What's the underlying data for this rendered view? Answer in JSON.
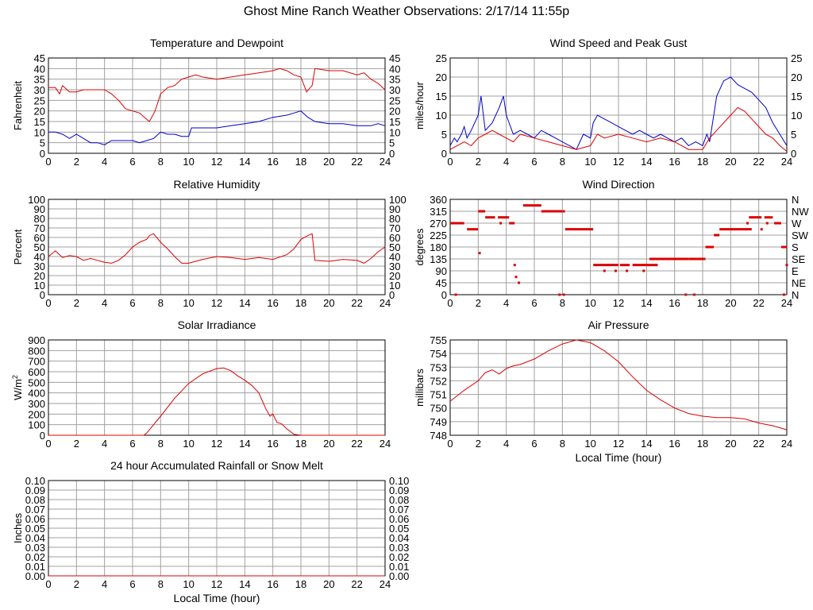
{
  "page": {
    "title": "Ghost Mine Ranch Weather Observations: 2/17/14 11:55p"
  },
  "colors": {
    "red": "#dd0000",
    "blue": "#0000cc",
    "grid": "#a0a0a0"
  },
  "chart_data": [
    {
      "id": "temp",
      "type": "line",
      "title": "Temperature and Dewpoint",
      "xlabel": "",
      "ylabel": "Fahrenheit",
      "xlim": [
        0,
        24
      ],
      "xticks": [
        0,
        2,
        4,
        6,
        8,
        10,
        12,
        14,
        16,
        18,
        20,
        22,
        24
      ],
      "ylim": [
        0,
        45
      ],
      "yticks": [
        0,
        5,
        10,
        15,
        20,
        25,
        30,
        35,
        40,
        45
      ],
      "right_axis": true,
      "series": [
        {
          "color": "#dd0000",
          "x": [
            0,
            0.5,
            0.8,
            1,
            1.5,
            2,
            2.5,
            3,
            4,
            4.5,
            5,
            5.5,
            6,
            6.5,
            7,
            7.2,
            7.6,
            8,
            8.5,
            9,
            9.5,
            10,
            10.5,
            11,
            12,
            13,
            14,
            15,
            16,
            16.5,
            17,
            17.5,
            18,
            18.4,
            18.8,
            19,
            20,
            21,
            22,
            22.5,
            23,
            23.5,
            24
          ],
          "y": [
            31,
            31,
            28,
            32,
            29,
            29,
            30,
            30,
            30,
            28,
            25,
            21,
            20,
            19,
            16,
            15,
            20,
            28,
            31,
            32,
            35,
            36,
            37,
            36,
            35,
            36,
            37,
            38,
            39,
            40,
            39,
            37,
            36,
            29,
            32,
            40,
            39,
            39,
            37,
            38,
            35,
            33,
            30
          ]
        },
        {
          "color": "#0000cc",
          "x": [
            0,
            0.5,
            1,
            1.5,
            2,
            2.5,
            3,
            3.5,
            4,
            4.5,
            5,
            5.5,
            6,
            6.5,
            7,
            7.5,
            8,
            8.5,
            9,
            9.5,
            10,
            10.2,
            11,
            12,
            13,
            14,
            15,
            16,
            17,
            17.5,
            18,
            18.5,
            19,
            20,
            21,
            22,
            23,
            23.5,
            24
          ],
          "y": [
            10,
            10,
            9,
            7,
            9,
            7,
            5,
            5,
            4,
            6,
            6,
            6,
            6,
            5,
            6,
            7,
            10,
            9,
            9,
            8,
            8,
            12,
            12,
            12,
            13,
            14,
            15,
            17,
            18,
            19,
            20,
            17,
            15,
            14,
            14,
            13,
            13,
            14,
            13
          ]
        }
      ]
    },
    {
      "id": "wind",
      "type": "line",
      "title": "Wind Speed and Peak Gust",
      "xlabel": "",
      "ylabel": "miles/hour",
      "xlim": [
        0,
        24
      ],
      "xticks": [
        0,
        2,
        4,
        6,
        8,
        10,
        12,
        14,
        16,
        18,
        20,
        22,
        24
      ],
      "ylim": [
        0,
        25
      ],
      "yticks": [
        0,
        5,
        10,
        15,
        20,
        25
      ],
      "right_axis": true,
      "series": [
        {
          "color": "#0000cc",
          "x": [
            0,
            0.3,
            0.5,
            0.8,
            1,
            1.2,
            1.5,
            2,
            2.2,
            2.5,
            3,
            3.5,
            3.8,
            4,
            4.5,
            5,
            5.5,
            6,
            6.5,
            7,
            7.5,
            8,
            8.5,
            9,
            9.5,
            10,
            10.2,
            10.5,
            11,
            11.5,
            12,
            12.5,
            13,
            13.5,
            14,
            14.5,
            15,
            15.5,
            16,
            16.5,
            17,
            17.5,
            18,
            18.3,
            18.5,
            19,
            19.5,
            20,
            20.5,
            21,
            21.5,
            22,
            22.5,
            23,
            23.5,
            24
          ],
          "y": [
            2,
            4,
            3,
            5,
            7,
            4,
            6,
            10,
            15,
            6,
            8,
            12,
            15,
            10,
            5,
            6,
            5,
            4,
            6,
            5,
            4,
            3,
            2,
            1,
            5,
            4,
            8,
            10,
            9,
            8,
            7,
            6,
            5,
            6,
            5,
            4,
            5,
            4,
            3,
            4,
            2,
            3,
            2,
            5,
            3,
            15,
            19,
            20,
            18,
            17,
            16,
            14,
            12,
            8,
            5,
            2
          ]
        },
        {
          "color": "#dd0000",
          "x": [
            0,
            0.5,
            1,
            1.5,
            2,
            2.5,
            3,
            3.5,
            4,
            4.5,
            5,
            6,
            7,
            8,
            9,
            10,
            10.5,
            11,
            12,
            13,
            14,
            15,
            16,
            17,
            18,
            18.5,
            19,
            19.5,
            20,
            20.5,
            21,
            21.5,
            22,
            22.5,
            23,
            23.5,
            24
          ],
          "y": [
            1,
            2,
            3,
            2,
            4,
            5,
            6,
            5,
            4,
            3,
            5,
            4,
            3,
            2,
            1,
            2,
            5,
            4,
            5,
            4,
            3,
            4,
            3,
            1,
            1,
            4,
            6,
            8,
            10,
            12,
            11,
            9,
            7,
            5,
            4,
            2,
            0.5
          ]
        }
      ]
    },
    {
      "id": "rh",
      "type": "line",
      "title": "Relative Humidity",
      "xlabel": "",
      "ylabel": "Percent",
      "xlim": [
        0,
        24
      ],
      "xticks": [
        0,
        2,
        4,
        6,
        8,
        10,
        12,
        14,
        16,
        18,
        20,
        22,
        24
      ],
      "ylim": [
        0,
        100
      ],
      "yticks": [
        0,
        10,
        20,
        30,
        40,
        50,
        60,
        70,
        80,
        90,
        100
      ],
      "right_axis": true,
      "series": [
        {
          "color": "#dd0000",
          "x": [
            0,
            0.5,
            1,
            1.5,
            2,
            2.5,
            3,
            3.5,
            4,
            4.5,
            5,
            5.5,
            6,
            6.5,
            7,
            7.2,
            7.5,
            8,
            8.5,
            9,
            9.5,
            10,
            11,
            12,
            13,
            14,
            15,
            16,
            17,
            17.5,
            18,
            18.5,
            18.8,
            19,
            20,
            21,
            22,
            22.5,
            23,
            23.5,
            24
          ],
          "y": [
            40,
            46,
            39,
            41,
            40,
            36,
            38,
            36,
            34,
            33,
            36,
            42,
            50,
            55,
            58,
            62,
            64,
            55,
            48,
            40,
            33,
            33,
            37,
            40,
            39,
            37,
            39,
            37,
            42,
            48,
            58,
            62,
            64,
            36,
            35,
            37,
            36,
            33,
            38,
            45,
            50
          ]
        }
      ]
    },
    {
      "id": "wdir",
      "type": "scatter",
      "title": "Wind Direction",
      "xlabel": "",
      "ylabel": "degrees",
      "xlim": [
        0,
        24
      ],
      "xticks": [
        0,
        2,
        4,
        6,
        8,
        10,
        12,
        14,
        16,
        18,
        20,
        22,
        24
      ],
      "ylim": [
        0,
        360
      ],
      "yticks": [
        0,
        45,
        90,
        135,
        180,
        225,
        270,
        315,
        360
      ],
      "right_labels": [
        "N",
        "NE",
        "E",
        "SE",
        "S",
        "SW",
        "W",
        "NW",
        "N"
      ],
      "segments": [
        {
          "x0": 0,
          "x1": 1,
          "y": 270
        },
        {
          "x0": 1.2,
          "x1": 2,
          "y": 247
        },
        {
          "x0": 2,
          "x1": 2.5,
          "y": 315
        },
        {
          "x0": 2.5,
          "x1": 3.2,
          "y": 292
        },
        {
          "x0": 3.4,
          "x1": 4.2,
          "y": 292
        },
        {
          "x0": 4.2,
          "x1": 4.6,
          "y": 270
        },
        {
          "x0": 5.2,
          "x1": 6.5,
          "y": 337
        },
        {
          "x0": 6.5,
          "x1": 8,
          "y": 315
        },
        {
          "x0": 8.2,
          "x1": 10.2,
          "y": 247
        },
        {
          "x0": 10.2,
          "x1": 12,
          "y": 112
        },
        {
          "x0": 12.1,
          "x1": 12.8,
          "y": 112
        },
        {
          "x0": 13,
          "x1": 14,
          "y": 112
        },
        {
          "x0": 14,
          "x1": 14.8,
          "y": 112
        },
        {
          "x0": 14.2,
          "x1": 15,
          "y": 135
        },
        {
          "x0": 15,
          "x1": 17,
          "y": 135
        },
        {
          "x0": 17,
          "x1": 18.2,
          "y": 135
        },
        {
          "x0": 18.2,
          "x1": 18.8,
          "y": 180
        },
        {
          "x0": 18.8,
          "x1": 19.2,
          "y": 225
        },
        {
          "x0": 19.2,
          "x1": 21.5,
          "y": 247
        },
        {
          "x0": 21.3,
          "x1": 22.2,
          "y": 292
        },
        {
          "x0": 22.4,
          "x1": 23,
          "y": 292
        },
        {
          "x0": 23.1,
          "x1": 23.6,
          "y": 270
        },
        {
          "x0": 23.6,
          "x1": 24,
          "y": 180
        }
      ],
      "points": [
        {
          "x": 0.4,
          "y": 0
        },
        {
          "x": 2.1,
          "y": 157
        },
        {
          "x": 3.6,
          "y": 270
        },
        {
          "x": 4.6,
          "y": 112
        },
        {
          "x": 4.7,
          "y": 67
        },
        {
          "x": 4.9,
          "y": 45
        },
        {
          "x": 7.8,
          "y": 0
        },
        {
          "x": 8.1,
          "y": 0
        },
        {
          "x": 8.1,
          "y": 315
        },
        {
          "x": 11,
          "y": 90
        },
        {
          "x": 11.8,
          "y": 90
        },
        {
          "x": 12.6,
          "y": 90
        },
        {
          "x": 13.8,
          "y": 90
        },
        {
          "x": 16.8,
          "y": 0
        },
        {
          "x": 17.4,
          "y": 0
        },
        {
          "x": 21.2,
          "y": 270
        },
        {
          "x": 22.2,
          "y": 247
        },
        {
          "x": 22.6,
          "y": 270
        },
        {
          "x": 23.8,
          "y": 0
        },
        {
          "x": 24,
          "y": 112
        }
      ]
    },
    {
      "id": "solar",
      "type": "line",
      "title": "Solar Irradiance",
      "xlabel": "",
      "ylabel": "W/m2",
      "xlim": [
        0,
        24
      ],
      "xticks": [
        0,
        2,
        4,
        6,
        8,
        10,
        12,
        14,
        16,
        18,
        20,
        22,
        24
      ],
      "ylim": [
        0,
        900
      ],
      "yticks": [
        0,
        100,
        200,
        300,
        400,
        500,
        600,
        700,
        800,
        900
      ],
      "right_axis": false,
      "series": [
        {
          "color": "#dd0000",
          "x": [
            0,
            6.8,
            7,
            8,
            9,
            10,
            11,
            12,
            12.5,
            13,
            13.5,
            14,
            14.5,
            15,
            15.5,
            15.8,
            16,
            16.3,
            16.6,
            17,
            17.5,
            18,
            24
          ],
          "y": [
            0,
            0,
            20,
            180,
            350,
            490,
            580,
            630,
            635,
            610,
            560,
            520,
            470,
            400,
            250,
            180,
            200,
            120,
            110,
            60,
            10,
            0,
            0
          ]
        }
      ]
    },
    {
      "id": "pressure",
      "type": "line",
      "title": "Air Pressure",
      "xlabel": "Local Time (hour)",
      "ylabel": "millibars",
      "xlim": [
        0,
        24
      ],
      "xticks": [
        0,
        2,
        4,
        6,
        8,
        10,
        12,
        14,
        16,
        18,
        20,
        22,
        24
      ],
      "ylim": [
        748,
        755
      ],
      "yticks": [
        748,
        749,
        750,
        751,
        752,
        753,
        754,
        755
      ],
      "right_axis": false,
      "series": [
        {
          "color": "#dd0000",
          "x": [
            0,
            1,
            2,
            2.5,
            3,
            3.5,
            4,
            4.5,
            5,
            6,
            7,
            8,
            9,
            10,
            11,
            12,
            13,
            14,
            15,
            16,
            17,
            18,
            19,
            20,
            21,
            22,
            23,
            24
          ],
          "y": [
            750.5,
            751.3,
            752,
            752.6,
            752.8,
            752.5,
            752.9,
            753.1,
            753.2,
            753.6,
            754.2,
            754.7,
            755,
            754.8,
            754.2,
            753.4,
            752.3,
            751.3,
            750.6,
            750,
            749.6,
            749.4,
            749.3,
            749.3,
            749.2,
            748.9,
            748.7,
            748.4
          ]
        }
      ]
    },
    {
      "id": "rain",
      "type": "line",
      "title": "24 hour Accumulated Rainfall or Snow Melt",
      "xlabel": "Local Time (hour)",
      "ylabel": "Inches",
      "xlim": [
        0,
        24
      ],
      "xticks": [
        0,
        2,
        4,
        6,
        8,
        10,
        12,
        14,
        16,
        18,
        20,
        22,
        24
      ],
      "ylim": [
        0,
        0.1
      ],
      "yticks": [
        0,
        0.01,
        0.02,
        0.03,
        0.04,
        0.05,
        0.06,
        0.07,
        0.08,
        0.09,
        0.1
      ],
      "ytick_labels": [
        "0.00",
        "0.01",
        "0.02",
        "0.03",
        "0.04",
        "0.05",
        "0.06",
        "0.07",
        "0.08",
        "0.09",
        "0.10"
      ],
      "right_axis": true,
      "series": [
        {
          "color": "#dd0000",
          "x": [
            0,
            24
          ],
          "y": [
            0,
            0
          ]
        }
      ]
    }
  ]
}
